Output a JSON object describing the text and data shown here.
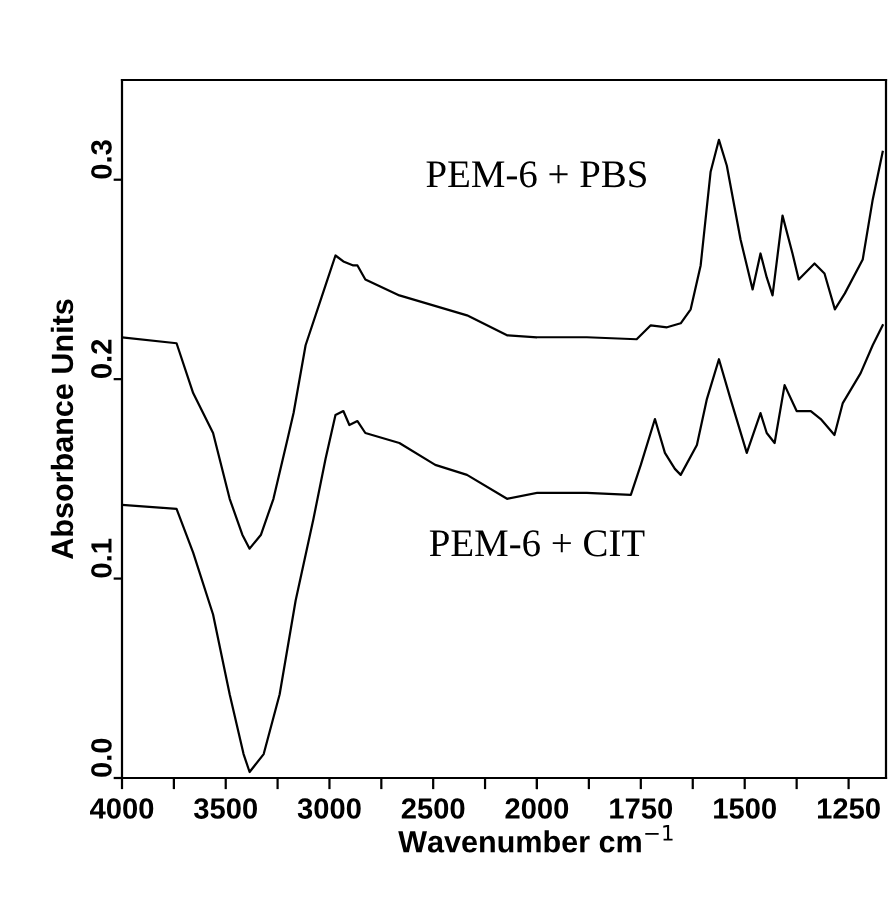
{
  "chart_data": [
    {
      "type": "line",
      "xlabel": "Wavenumber cm$^{−1}$",
      "ylabel": "Absorbance Units",
      "xlim": [
        4000,
        2000
      ],
      "ylim": [
        0,
        0.35
      ],
      "xticks": [
        4000,
        {
          "value": 3750,
          "label": null
        },
        3500,
        {
          "value": 3250,
          "label": null
        },
        3000,
        {
          "value": 2750,
          "label": null
        },
        2500,
        {
          "value": 2250,
          "label": null
        },
        2000
      ],
      "yticks": [
        {
          "value": 0,
          "label": "0.0"
        },
        0.1,
        0.2,
        0.3
      ],
      "grid": false,
      "legend": false,
      "marker": "none",
      "line_style": "solid",
      "series": [
        {
          "name": "PEM-6 + PBS",
          "color": "#000000",
          "x": [
            4000,
            3737,
            3657,
            3561,
            3481,
            3420,
            3385,
            3330,
            3270,
            3202,
            3173,
            3115,
            3019,
            2971,
            2933,
            2885,
            2865,
            2827,
            2663,
            2337,
            2144,
            2000
          ],
          "values": [
            0.221,
            0.218,
            0.193,
            0.173,
            0.14,
            0.122,
            0.115,
            0.122,
            0.14,
            0.17,
            0.183,
            0.217,
            0.247,
            0.262,
            0.259,
            0.257,
            0.257,
            0.25,
            0.242,
            0.232,
            0.222,
            0.221
          ]
        },
        {
          "name": "PEM-6 + CIT",
          "color": "#000000",
          "x": [
            4000,
            3737,
            3657,
            3561,
            3481,
            3414,
            3385,
            3317,
            3240,
            3163,
            3077,
            3019,
            2971,
            2933,
            2904,
            2865,
            2827,
            2663,
            2490,
            2337,
            2144,
            2000
          ],
          "values": [
            0.137,
            0.135,
            0.113,
            0.082,
            0.042,
            0.012,
            0.003,
            0.012,
            0.042,
            0.089,
            0.13,
            0.16,
            0.182,
            0.184,
            0.177,
            0.179,
            0.173,
            0.168,
            0.157,
            0.152,
            0.14,
            0.143
          ]
        }
      ]
    },
    {
      "type": "line",
      "xlim": [
        2000,
        1160
      ],
      "ylim": [
        0,
        0.35
      ],
      "tick_labels": "x",
      "xticks": [
        {
          "value": 2000,
          "label": null
        },
        {
          "value": 1875,
          "label": null
        },
        1750,
        {
          "value": 1625,
          "label": null
        },
        1500,
        {
          "value": 1375,
          "label": null
        },
        1250
      ],
      "grid": false,
      "legend": false,
      "marker": "none",
      "line_style": "solid",
      "series": [
        {
          "color": "#000000",
          "x": [
            2000,
            1880,
            1760,
            1726,
            1687,
            1654,
            1630,
            1606,
            1582,
            1562,
            1543,
            1510,
            1481,
            1462,
            1447,
            1433,
            1409,
            1385,
            1370,
            1332,
            1308,
            1283,
            1259,
            1216,
            1192,
            1168
          ],
          "values": [
            0.221,
            0.221,
            0.22,
            0.227,
            0.226,
            0.228,
            0.235,
            0.257,
            0.304,
            0.32,
            0.307,
            0.27,
            0.245,
            0.263,
            0.251,
            0.242,
            0.282,
            0.263,
            0.25,
            0.258,
            0.253,
            0.235,
            0.243,
            0.26,
            0.29,
            0.314
          ]
        },
        {
          "color": "#000000",
          "x": [
            2000,
            1880,
            1774,
            1750,
            1716,
            1692,
            1668,
            1654,
            1615,
            1591,
            1562,
            1534,
            1495,
            1462,
            1447,
            1428,
            1404,
            1375,
            1341,
            1317,
            1284,
            1264,
            1221,
            1192,
            1168
          ],
          "values": [
            0.143,
            0.143,
            0.142,
            0.157,
            0.18,
            0.163,
            0.155,
            0.152,
            0.167,
            0.19,
            0.21,
            0.19,
            0.163,
            0.183,
            0.173,
            0.168,
            0.197,
            0.184,
            0.184,
            0.18,
            0.172,
            0.188,
            0.203,
            0.217,
            0.227
          ]
        }
      ]
    }
  ]
}
